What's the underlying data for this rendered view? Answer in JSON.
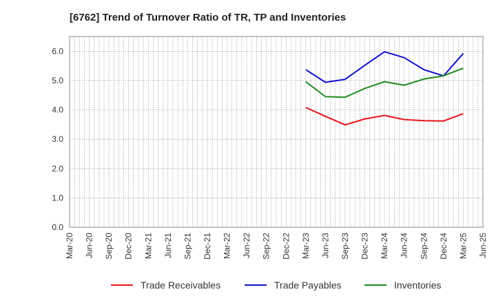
{
  "chart_data": {
    "type": "line",
    "title": "[6762]  Trend of Turnover Ratio of TR, TP and Inventories",
    "xlabel": "",
    "ylabel": "",
    "ylim": [
      0,
      6.5
    ],
    "yticks": [
      "0.0",
      "1.0",
      "2.0",
      "3.0",
      "4.0",
      "5.0",
      "6.0"
    ],
    "x_ticks": [
      "Mar-20",
      "Jun-20",
      "Sep-20",
      "Dec-20",
      "Mar-21",
      "Jun-21",
      "Sep-21",
      "Dec-21",
      "Mar-22",
      "Jun-22",
      "Sep-22",
      "Dec-22",
      "Mar-23",
      "Jun-23",
      "Sep-23",
      "Dec-23",
      "Mar-24",
      "Jun-24",
      "Sep-24",
      "Dec-24",
      "Mar-25",
      "Jun-25"
    ],
    "x": [
      "Mar-23",
      "Jun-23",
      "Sep-23",
      "Dec-23",
      "Mar-24",
      "Jun-24",
      "Sep-24",
      "Dec-24",
      "Mar-25"
    ],
    "grid": true,
    "legend_position": "bottom",
    "series": [
      {
        "name": "Trade Receivables",
        "color": "#e8141c",
        "values": [
          4.08,
          3.78,
          3.49,
          3.69,
          3.81,
          3.67,
          3.63,
          3.62,
          3.87
        ]
      },
      {
        "name": "Trade Payables",
        "color": "#1010cc",
        "values": [
          5.37,
          4.94,
          5.04,
          5.52,
          5.98,
          5.78,
          5.37,
          5.16,
          5.92
        ]
      },
      {
        "name": "Inventories",
        "color": "#1e8a1e",
        "values": [
          4.96,
          4.45,
          4.43,
          4.73,
          4.96,
          4.84,
          5.05,
          5.16,
          5.42
        ]
      }
    ]
  }
}
